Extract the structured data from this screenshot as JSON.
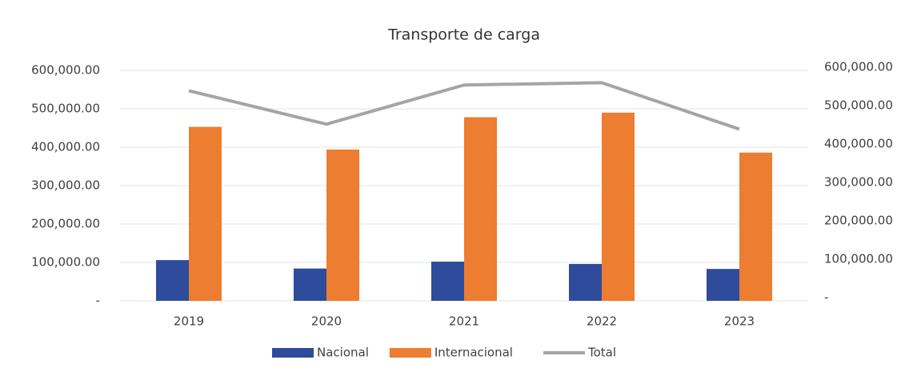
{
  "chart_data": {
    "type": "bar",
    "title": "Transporte de carga",
    "categories": [
      "2019",
      "2020",
      "2021",
      "2022",
      "2023"
    ],
    "series": [
      {
        "name": "Nacional",
        "type": "bar",
        "color": "#2f4b9c",
        "values": [
          106000,
          84000,
          102000,
          96000,
          83000
        ]
      },
      {
        "name": "Internacional",
        "type": "bar",
        "color": "#ed7d31",
        "values": [
          453000,
          394000,
          478000,
          490000,
          386000
        ]
      },
      {
        "name": "Total",
        "type": "line",
        "axis": "y2",
        "color": "#a5a5a5",
        "values": [
          547000,
          460000,
          562000,
          568000,
          447000
        ]
      }
    ],
    "ylim": [
      0,
      600000
    ],
    "yticks": [
      {
        "value": 0,
        "label": "-"
      },
      {
        "value": 100000,
        "label": "100,000.00"
      },
      {
        "value": 200000,
        "label": "200,000.00"
      },
      {
        "value": 300000,
        "label": "300,000.00"
      },
      {
        "value": 400000,
        "label": "400,000.00"
      },
      {
        "value": 500000,
        "label": "500,000.00"
      },
      {
        "value": 600000,
        "label": "600,000.00"
      }
    ],
    "y2lim": [
      0,
      600000
    ],
    "y2ticks": [
      {
        "value": 0,
        "label": "-"
      },
      {
        "value": 100000,
        "label": "100,000.00"
      },
      {
        "value": 200000,
        "label": "200,000.00"
      },
      {
        "value": 300000,
        "label": "300,000.00"
      },
      {
        "value": 400000,
        "label": "400,000.00"
      },
      {
        "value": 500000,
        "label": "500,000.00"
      },
      {
        "value": 600000,
        "label": "600,000.00"
      }
    ],
    "grid": true,
    "legend": "bottom"
  }
}
